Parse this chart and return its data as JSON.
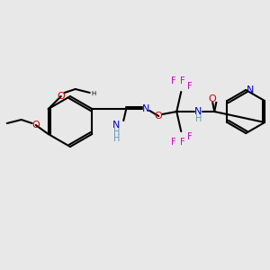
{
  "bg_color": "#e8e8e8",
  "bond_color": "#000000",
  "atom_colors": {
    "N": "#0000cc",
    "O": "#cc0000",
    "F": "#cc00cc",
    "C": "#000000",
    "H": "#6699aa"
  },
  "font_size_atoms": 8,
  "font_size_small": 7
}
